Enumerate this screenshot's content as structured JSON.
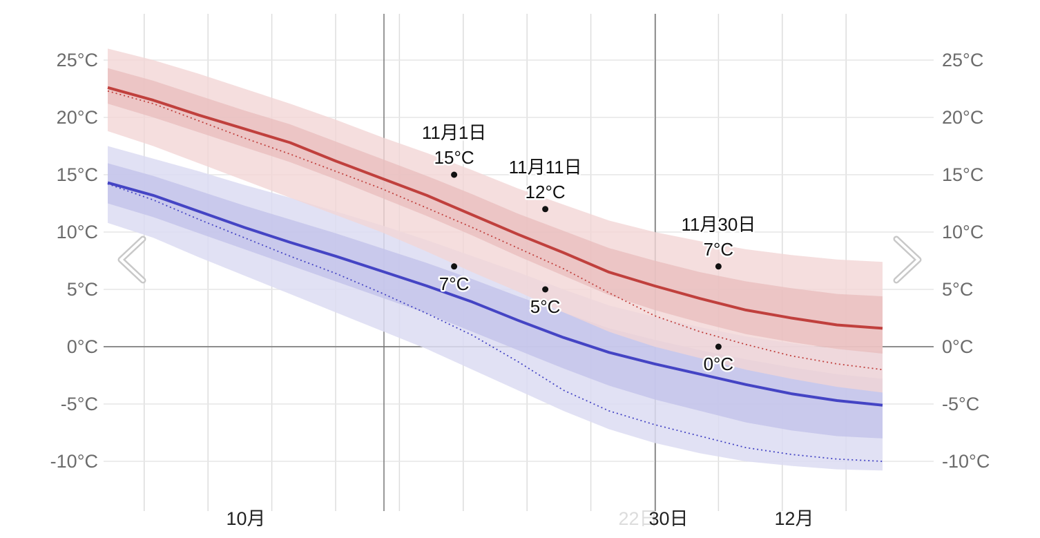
{
  "chart_data": {
    "type": "area",
    "title": "",
    "xlabel": "",
    "ylabel": "",
    "ylim": [
      -12.5,
      28.5
    ],
    "grid": true,
    "y_ticks": [
      25,
      20,
      15,
      10,
      5,
      0,
      -5,
      -10
    ],
    "y_tick_labels": [
      "25°C",
      "20°C",
      "15°C",
      "10°C",
      "5°C",
      "0°C",
      "-5°C",
      "-10°C"
    ],
    "x_ticks": [
      {
        "label": "10月",
        "day": 11
      },
      {
        "label": "30日",
        "day": 54
      },
      {
        "label": "12月",
        "day": 72
      }
    ],
    "ghost_label": "22日",
    "x": [
      -5,
      0,
      5,
      10,
      15,
      20,
      25,
      30,
      35,
      40,
      45,
      50,
      55,
      60,
      65,
      70,
      75,
      80
    ],
    "series": [
      {
        "name": "high_avg",
        "values": [
          22.6,
          21.5,
          20.2,
          19.0,
          17.8,
          16.2,
          14.7,
          13.2,
          11.5,
          9.8,
          8.2,
          6.5,
          5.3,
          4.2,
          3.2,
          2.5,
          1.9,
          1.6
        ]
      },
      {
        "name": "high_record",
        "values": [
          22.3,
          21.2,
          19.7,
          18.2,
          16.8,
          15.3,
          13.8,
          12.1,
          10.4,
          8.6,
          6.8,
          4.7,
          2.7,
          1.3,
          0.2,
          -0.8,
          -1.5,
          -2.0
        ]
      },
      {
        "name": "high_p10_p90",
        "low": [
          18.8,
          17.5,
          16.0,
          14.5,
          13.0,
          11.5,
          10.0,
          8.3,
          6.5,
          4.8,
          3.0,
          1.3,
          0.0,
          -1.0,
          -2.0,
          -2.8,
          -3.5,
          -4.0
        ],
        "high": [
          26.0,
          25.0,
          23.8,
          22.5,
          21.2,
          19.8,
          18.3,
          16.9,
          15.4,
          13.8,
          12.4,
          11.0,
          10.0,
          9.2,
          8.5,
          8.0,
          7.6,
          7.4
        ]
      },
      {
        "name": "high_p25_p75",
        "low": [
          21.2,
          20.0,
          18.7,
          17.4,
          16.1,
          14.6,
          13.0,
          11.4,
          9.7,
          7.9,
          6.2,
          4.5,
          3.2,
          2.1,
          1.1,
          0.4,
          -0.2,
          -0.6
        ],
        "high": [
          24.3,
          23.2,
          21.9,
          20.6,
          19.4,
          17.9,
          16.4,
          14.9,
          13.3,
          11.6,
          10.1,
          8.6,
          7.5,
          6.5,
          5.7,
          5.1,
          4.6,
          4.4
        ]
      },
      {
        "name": "low_avg",
        "values": [
          14.3,
          13.2,
          11.8,
          10.4,
          9.1,
          7.9,
          6.6,
          5.3,
          3.9,
          2.3,
          0.8,
          -0.5,
          -1.5,
          -2.4,
          -3.3,
          -4.1,
          -4.7,
          -5.1
        ]
      },
      {
        "name": "low_record",
        "values": [
          14.2,
          12.8,
          11.1,
          9.5,
          7.9,
          6.4,
          4.7,
          2.9,
          1.0,
          -1.3,
          -3.8,
          -5.6,
          -6.8,
          -7.8,
          -8.8,
          -9.4,
          -9.8,
          -10.0
        ]
      },
      {
        "name": "low_p10_p90",
        "low": [
          10.8,
          9.5,
          7.8,
          6.2,
          4.6,
          3.0,
          1.4,
          -0.2,
          -2.0,
          -3.8,
          -5.6,
          -7.2,
          -8.4,
          -9.3,
          -10.0,
          -10.4,
          -10.7,
          -10.8
        ],
        "high": [
          17.5,
          16.4,
          15.3,
          14.1,
          13.0,
          11.8,
          10.6,
          9.3,
          7.9,
          6.5,
          5.0,
          3.6,
          2.6,
          1.7,
          0.9,
          0.3,
          -0.2,
          -0.4
        ]
      },
      {
        "name": "low_p25_p75",
        "low": [
          12.5,
          11.3,
          9.9,
          8.5,
          7.1,
          5.7,
          4.3,
          2.9,
          1.3,
          -0.3,
          -1.9,
          -3.4,
          -4.6,
          -5.6,
          -6.6,
          -7.3,
          -7.8,
          -8.0
        ],
        "high": [
          16.0,
          14.9,
          13.6,
          12.3,
          11.1,
          9.9,
          8.6,
          7.3,
          5.9,
          4.4,
          3.0,
          1.6,
          0.6,
          -0.3,
          -1.1,
          -1.8,
          -2.4,
          -2.8
        ]
      }
    ],
    "annotations": [
      {
        "date": "11月1日",
        "day": 33,
        "high": 15,
        "low": 7,
        "high_label": "15°C",
        "low_label": "7°C"
      },
      {
        "date": "11月11日",
        "day": 43,
        "high": 12,
        "low": 5,
        "high_label": "12°C",
        "low_label": "5°C"
      },
      {
        "date": "11月30日",
        "day": 62,
        "high": 7,
        "low": 0,
        "high_label": "7°C",
        "low_label": "0°C"
      }
    ],
    "colors": {
      "high_line": "#c0403d",
      "high_band_outer": "#f2d6d6",
      "high_band_inner": "#e8bcbc",
      "low_line": "#4444c4",
      "low_band_outer": "#dcdcf2",
      "low_band_inner": "#c4c4ea",
      "grid": "#e6e6e6",
      "vgrid": "#dddddd",
      "zero_line": "#8c8c8c",
      "cursor_line": "#777777"
    }
  },
  "nav": {
    "prev_icon": "chevron-left-icon",
    "next_icon": "chevron-right-icon"
  }
}
